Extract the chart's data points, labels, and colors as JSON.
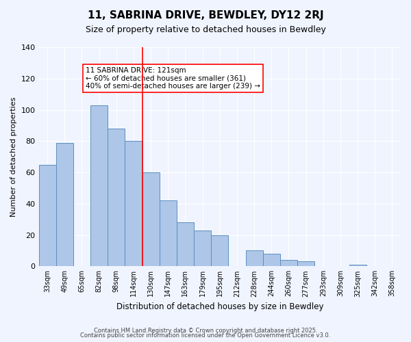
{
  "title": "11, SABRINA DRIVE, BEWDLEY, DY12 2RJ",
  "subtitle": "Size of property relative to detached houses in Bewdley",
  "xlabel": "Distribution of detached houses by size in Bewdley",
  "ylabel": "Number of detached properties",
  "bar_labels": [
    "33sqm",
    "49sqm",
    "65sqm",
    "82sqm",
    "98sqm",
    "114sqm",
    "130sqm",
    "147sqm",
    "163sqm",
    "179sqm",
    "195sqm",
    "212sqm",
    "228sqm",
    "244sqm",
    "260sqm",
    "277sqm",
    "293sqm",
    "309sqm",
    "325sqm",
    "342sqm",
    "358sqm"
  ],
  "bar_values": [
    65,
    79,
    0,
    103,
    88,
    80,
    60,
    42,
    28,
    23,
    20,
    0,
    10,
    8,
    4,
    3,
    0,
    0,
    1,
    0,
    0
  ],
  "bar_color": "#aec6e8",
  "bar_edge_color": "#5b8fbf",
  "property_line_x": 5,
  "property_line_label": "11 SABRINA DRIVE: 121sqm",
  "annotation_line1": "← 60% of detached houses are smaller (361)",
  "annotation_line2": "40% of semi-detached houses are larger (239) →",
  "annotation_box_color": "#ffffff",
  "annotation_box_edge": "#cc0000",
  "ylim": [
    0,
    140
  ],
  "yticks": [
    0,
    20,
    40,
    60,
    80,
    100,
    120,
    140
  ],
  "bg_color": "#f0f4ff",
  "footer_line1": "Contains HM Land Registry data © Crown copyright and database right 2025.",
  "footer_line2": "Contains public sector information licensed under the Open Government Licence v3.0."
}
